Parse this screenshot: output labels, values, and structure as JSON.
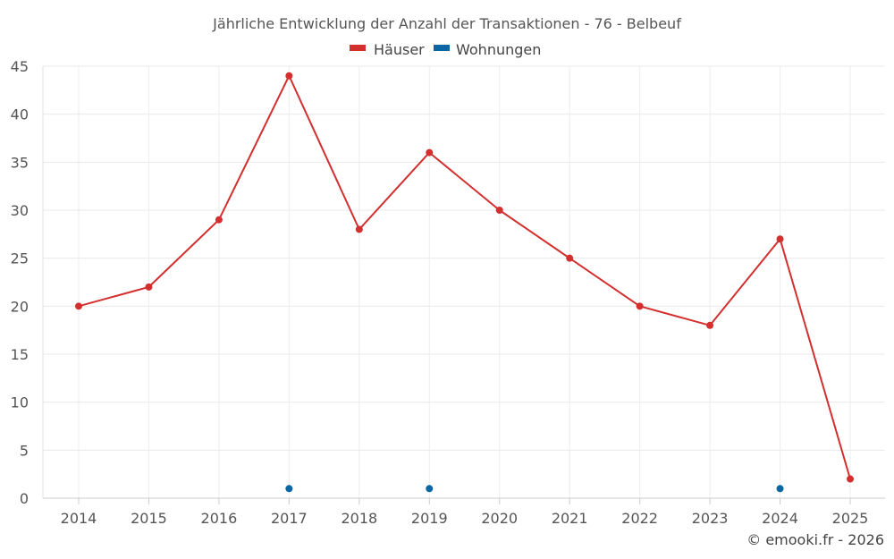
{
  "chart_data": {
    "type": "line",
    "title": "Jährliche Entwicklung der Anzahl der Transaktionen - 76 - Belbeuf",
    "xlabel": "",
    "ylabel": "",
    "categories": [
      "2014",
      "2015",
      "2016",
      "2017",
      "2018",
      "2019",
      "2020",
      "2021",
      "2022",
      "2023",
      "2024",
      "2025"
    ],
    "ylim": [
      0,
      45
    ],
    "yticks": [
      "0",
      "5",
      "10",
      "15",
      "20",
      "25",
      "30",
      "35",
      "40",
      "45"
    ],
    "grid": true,
    "legend_position": "top-center",
    "series": [
      {
        "name": "Häuser",
        "color": "#d32f2f",
        "values": [
          20,
          22,
          29,
          44,
          28,
          36,
          30,
          25,
          20,
          18,
          27,
          2
        ],
        "line": true
      },
      {
        "name": "Wohnungen",
        "color": "#0a67a3",
        "values": [
          null,
          null,
          null,
          1,
          null,
          1,
          null,
          null,
          null,
          null,
          1,
          null
        ],
        "line": false
      }
    ]
  },
  "footer": {
    "credit": "© emooki.fr - 2026"
  }
}
